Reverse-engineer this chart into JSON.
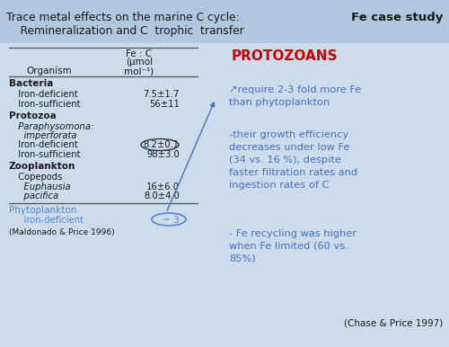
{
  "title_line1": "Trace metal effects on the marine C cycle:",
  "title_line2": "    Remineralization and C  trophic  transfer",
  "fe_case_study": "Fe case study",
  "background_color": "#cddceb",
  "header_bg_color": "#b0c8de",
  "protozoans_title": "PROTOZOANS",
  "bullet1": "↗require 2-3 fold more Fe\nthan phytoplankton",
  "bullet2": "-their growth efficiency\ndecreases under low Fe\n(34 vs. 16 %), despite\nfaster filtration rates and\ningestion rates of C",
  "bullet3": "- Fe recycling was higher\nwhen Fe limited (60 vs.\n85%)",
  "chase_ref": "(Chase & Price 1997)",
  "maldonado_ref": "(Maldonado & Price 1996)",
  "table_header_col1": "Fe : C",
  "table_header_col2": "(μmol",
  "table_header_col3": "mol⁻¹)",
  "table_header_org": "Organism",
  "bacteria_label": "Bacteria",
  "bact_iron_def_label": "  Iron-deficient",
  "bact_iron_def_val": "7.5±1.7",
  "bact_iron_suf_label": "  Iron-sufficient",
  "bact_iron_suf_val": "56±11",
  "protozoa_label": "Protozoa",
  "proto_species1": "  Paraphysomona:",
  "proto_species2": "    imperforata",
  "proto_iron_def_label": "  Iron-deficient",
  "proto_iron_def_val": "8.2±0.1",
  "proto_iron_suf_label": "  Iron-sufficient",
  "proto_iron_suf_val": "98±3.0",
  "zoo_label": "Zooplankton",
  "zoo_sub": "  Copepods",
  "zoo_species1": "    Euphausia",
  "zoo_species2": "    pacifica",
  "zoo_val1": "16±6.0",
  "zoo_val2": "8.0±4.0",
  "phyto_label": "Phytoplankton",
  "phyto_sub": "    iron-deficient",
  "phyto_val": "~ 3",
  "text_color_blue": "#4472c4",
  "text_color_red": "#cc0000",
  "text_color_black": "#1a1a1a",
  "text_color_phyto": "#5588cc"
}
